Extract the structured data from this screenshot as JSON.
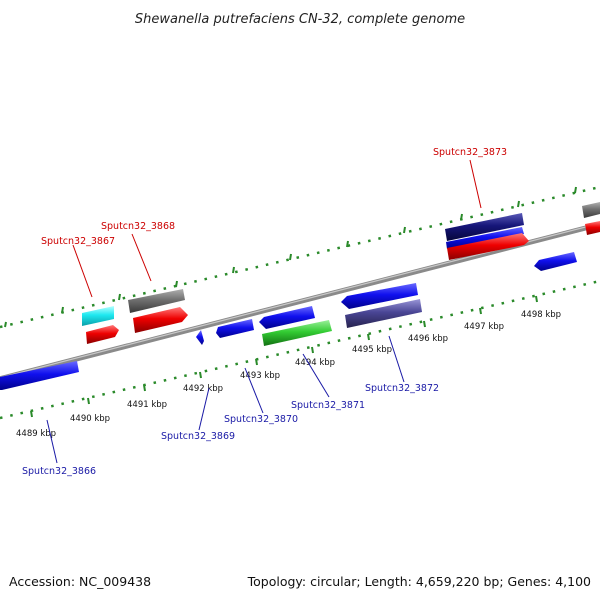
{
  "title": "Shewanella putrefaciens CN-32, complete genome",
  "footer": {
    "accession": "Accession: NC_009438",
    "stats": "Topology: circular; Length: 4,659,220 bp; Genes: 4,100"
  },
  "colors": {
    "plus_label": "#cc0000",
    "minus_label": "#1a1aa6",
    "tick": "#1e7e1e",
    "backbone": "#808080"
  },
  "ticks": [
    {
      "label": "4489 kbp"
    },
    {
      "label": "4490 kbp"
    },
    {
      "label": "4491 kbp"
    },
    {
      "label": "4492 kbp"
    },
    {
      "label": "4493 kbp"
    },
    {
      "label": "4494 kbp"
    },
    {
      "label": "4495 kbp"
    },
    {
      "label": "4496 kbp"
    },
    {
      "label": "4497 kbp"
    },
    {
      "label": "4498 kbp"
    }
  ],
  "gene_labels": [
    {
      "name": "Sputcn32_3873",
      "strand": "plus"
    },
    {
      "name": "Sputcn32_3868",
      "strand": "plus"
    },
    {
      "name": "Sputcn32_3867",
      "strand": "plus"
    },
    {
      "name": "Sputcn32_3872",
      "strand": "minus"
    },
    {
      "name": "Sputcn32_3871",
      "strand": "minus"
    },
    {
      "name": "Sputcn32_3870",
      "strand": "minus"
    },
    {
      "name": "Sputcn32_3869",
      "strand": "minus"
    },
    {
      "name": "Sputcn32_3866",
      "strand": "minus"
    }
  ]
}
